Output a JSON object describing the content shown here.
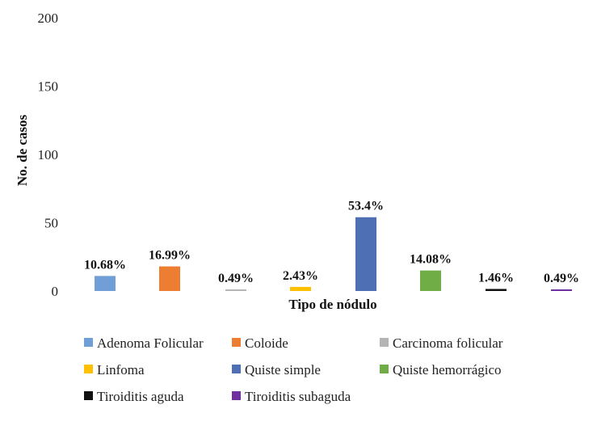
{
  "chart_data": {
    "type": "bar",
    "title": "",
    "xlabel": "Tipo de nódulo",
    "ylabel": "No. de casos",
    "ylim": [
      0,
      200
    ],
    "yticks": [
      "0",
      "50",
      "100",
      "150",
      "200"
    ],
    "grid": false,
    "legend_position": "bottom",
    "series": [
      {
        "name": "Adenoma Folicular",
        "value": 11,
        "label": "10.68%",
        "color": "#6f9fd6"
      },
      {
        "name": "Coloide",
        "value": 18,
        "label": "16.99%",
        "color": "#ed7d31"
      },
      {
        "name": "Carcinoma folicular",
        "value": 1,
        "label": "0.49%",
        "color": "#b4b4b4"
      },
      {
        "name": "Linfoma",
        "value": 3,
        "label": "2.43%",
        "color": "#ffc000"
      },
      {
        "name": "Quiste simple",
        "value": 54,
        "label": "53.4%",
        "color": "#4f6fb5"
      },
      {
        "name": "Quiste hemorrágico",
        "value": 15,
        "label": "14.08%",
        "color": "#70ad47"
      },
      {
        "name": "Tiroiditis aguda",
        "value": 1.5,
        "label": "1.46%",
        "color": "#111111"
      },
      {
        "name": "Tiroiditis subaguda",
        "value": 1,
        "label": "0.49%",
        "color": "#7030a0"
      }
    ]
  }
}
